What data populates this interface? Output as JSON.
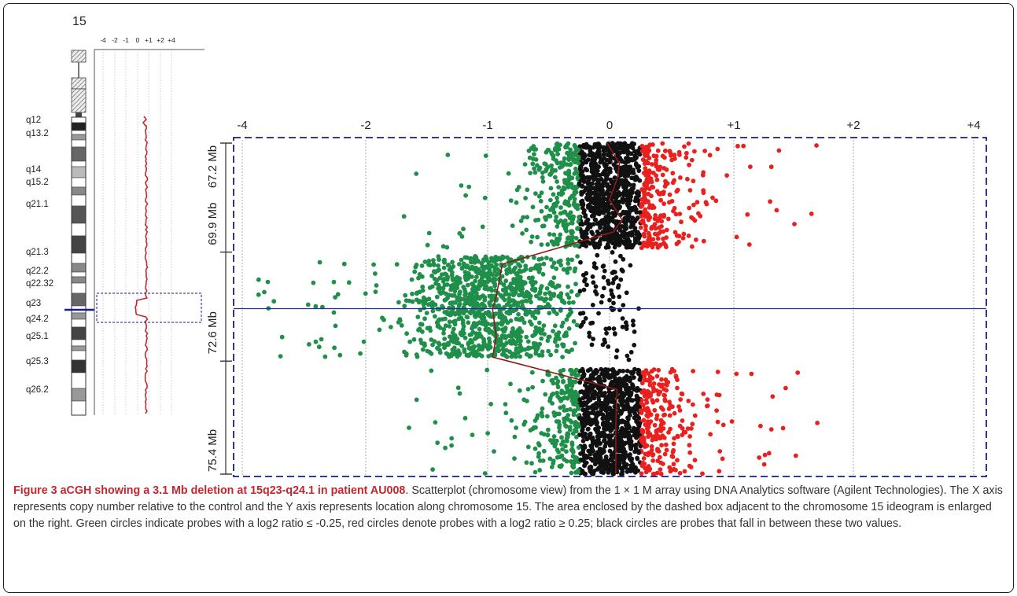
{
  "ideogram": {
    "chromosome": "15",
    "band_labels": [
      "q12",
      "q13.2",
      "q14",
      "q15.2",
      "q21.1",
      "q21.3",
      "q22.2",
      "q22.32",
      "q23",
      "q24.2",
      "q25.1",
      "q25.3",
      "q26.2"
    ],
    "mini_axis_ticks": [
      "-4",
      "-2",
      "-1",
      "0",
      "+1",
      "+2",
      "+4"
    ]
  },
  "chart_data": {
    "type": "scatter",
    "title": "",
    "xlabel": "",
    "ylabel": "",
    "x_ticks": [
      "-4",
      "-2",
      "-1",
      "0",
      "+1",
      "+2",
      "+4"
    ],
    "y_ticks": [
      "67.2 Mb",
      "69.9 Mb",
      "72.6 Mb",
      "75.4 Mb"
    ],
    "x_range": [
      -4,
      4
    ],
    "y_range": [
      67.2,
      75.4
    ],
    "y_reversed": true,
    "marker_line_mb": 71.3,
    "deletion_region_mb": [
      69.9,
      72.6
    ],
    "green_threshold": -0.25,
    "red_threshold": 0.25,
    "point_colors": {
      "green": "#1f8f4a",
      "black": "#111111",
      "red": "#e8211f"
    },
    "trend_line": [
      [
        -0.02,
        67.2
      ],
      [
        0.08,
        67.7
      ],
      [
        0.06,
        68.1
      ],
      [
        0.0,
        68.6
      ],
      [
        0.1,
        69.1
      ],
      [
        0.03,
        69.4
      ],
      [
        -0.88,
        70.2
      ],
      [
        -0.93,
        71.0
      ],
      [
        -0.96,
        71.3
      ],
      [
        -0.93,
        72.0
      ],
      [
        -0.96,
        72.5
      ],
      [
        -0.45,
        72.9
      ],
      [
        0.06,
        73.3
      ],
      [
        0.05,
        74.2
      ],
      [
        0.05,
        75.4
      ]
    ],
    "grid": true
  },
  "caption": {
    "title": "Figure 3 aCGH showing a 3.1 Mb deletion at 15q23-q24.1 in patient AU008",
    "body": ". Scatterplot (chromosome view) from the 1 × 1 M array using DNA Analytics software (Agilent Technologies). The X axis represents copy number relative to the control and the Y axis represents location along chromosome 15. The area enclosed by the dashed box adjacent to the chromosome 15 ideogram is enlarged on the right. Green circles indicate probes with a log2 ratio ≤ -0.25, red circles denote probes with a log2 ratio ≥ 0.25; black circles are probes that fall in between these two values."
  }
}
